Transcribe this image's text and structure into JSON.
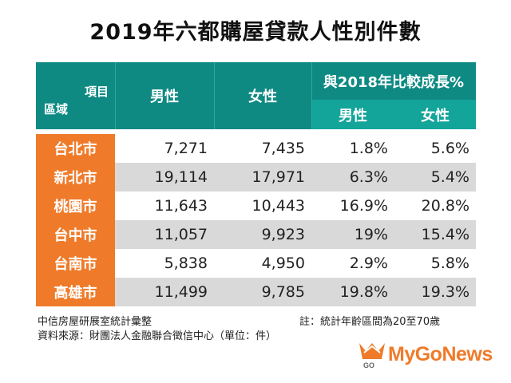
{
  "title": "2019年六都購屋貸款人性別件數",
  "table": {
    "corner_item": "項目",
    "corner_area": "區域",
    "col_male": "男性",
    "col_female": "女性",
    "growth_header": "與2018年比較成長%",
    "growth_male": "男性",
    "growth_female": "女性",
    "rows": [
      {
        "city": "台北市",
        "male": "7,271",
        "female": "7,435",
        "g_male": "1.8%",
        "g_female": "5.6%"
      },
      {
        "city": "新北市",
        "male": "19,114",
        "female": "17,971",
        "g_male": "6.3%",
        "g_female": "5.4%"
      },
      {
        "city": "桃園市",
        "male": "11,643",
        "female": "10,443",
        "g_male": "16.9%",
        "g_female": "20.8%"
      },
      {
        "city": "台中市",
        "male": "11,057",
        "female": "9,923",
        "g_male": "19%",
        "g_female": "15.4%"
      },
      {
        "city": "台南市",
        "male": "5,838",
        "female": "4,950",
        "g_male": "2.9%",
        "g_female": "5.8%"
      },
      {
        "city": "高雄市",
        "male": "11,499",
        "female": "9,785",
        "g_male": "19.8%",
        "g_female": "19.3%"
      }
    ]
  },
  "footer": {
    "compiled_by": "中信房屋研展室統計彙整",
    "source": "資料來源：財團法人金融聯合徵信中心（單位：件）",
    "note": "註：統計年齡區間為20至70歲"
  },
  "logo": {
    "text": "MyGoNews",
    "badge": "GO",
    "color": "#ef7b2a"
  },
  "colors": {
    "header": "#0e8a83",
    "subheader": "#13a49a",
    "city": "#ef7b2a",
    "stripe": "#d9d9d9"
  }
}
